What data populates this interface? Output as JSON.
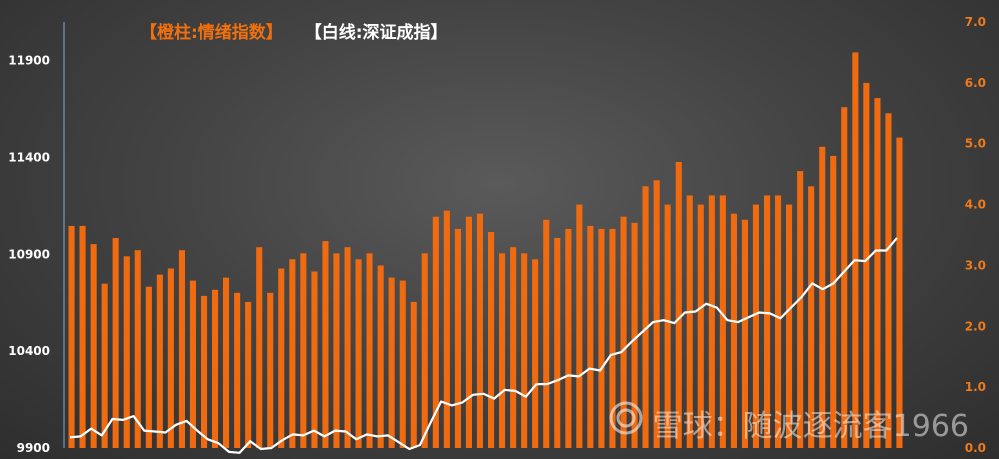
{
  "legend": {
    "orange_label": "【橙柱:情绪指数】",
    "white_label": "【白线:深证成指】"
  },
  "watermark": {
    "text": "雪球：随波逐流客1966",
    "icon": "snowball-logo-icon"
  },
  "colors": {
    "bar": "#f06a10",
    "line": "#ffffff",
    "left_axis_text": "#ffffff",
    "right_axis_text": "#f07a1a"
  },
  "chart_data": {
    "type": "bar",
    "title": "",
    "grid": false,
    "legend_position": "top-left",
    "left_axis": {
      "ticks": [
        "9900",
        "10400",
        "10900",
        "11400",
        "11900"
      ],
      "range": [
        9900,
        12100
      ]
    },
    "right_axis": {
      "ticks": [
        "0.0",
        "1.0",
        "2.0",
        "3.0",
        "4.0",
        "5.0",
        "6.0",
        "7.0"
      ],
      "range": [
        0.0,
        7.0
      ]
    },
    "series": [
      {
        "name": "情绪指数",
        "kind": "bar",
        "axis": "right",
        "values": [
          3.65,
          3.65,
          3.35,
          2.7,
          3.45,
          3.15,
          3.25,
          2.65,
          2.85,
          2.95,
          3.25,
          2.75,
          2.5,
          2.6,
          2.8,
          2.55,
          2.4,
          3.3,
          2.55,
          2.95,
          3.1,
          3.2,
          2.9,
          3.4,
          3.2,
          3.3,
          3.1,
          3.2,
          3.0,
          2.8,
          2.75,
          2.4,
          3.2,
          3.8,
          3.9,
          3.6,
          3.8,
          3.85,
          3.55,
          3.2,
          3.3,
          3.2,
          3.1,
          3.75,
          3.45,
          3.6,
          4.0,
          3.65,
          3.6,
          3.6,
          3.8,
          3.7,
          4.3,
          4.4,
          4.0,
          4.7,
          4.15,
          4.0,
          4.15,
          4.15,
          3.85,
          3.75,
          4.0,
          4.15,
          4.15,
          4.0,
          4.55,
          4.3,
          4.95,
          4.8,
          5.6,
          6.5,
          6.0,
          5.75,
          5.5,
          5.1
        ]
      },
      {
        "name": "深证成指",
        "kind": "line",
        "axis": "left",
        "values": [
          9955,
          9960,
          10000,
          9965,
          10050,
          10045,
          10065,
          9990,
          9985,
          9980,
          10020,
          10040,
          9990,
          9945,
          9925,
          9880,
          9875,
          9935,
          9895,
          9900,
          9940,
          9970,
          9965,
          9990,
          9960,
          9990,
          9985,
          9945,
          9970,
          9960,
          9965,
          9930,
          9895,
          9915,
          10030,
          10140,
          10120,
          10135,
          10175,
          10180,
          10155,
          10200,
          10195,
          10165,
          10230,
          10230,
          10250,
          10275,
          10270,
          10310,
          10300,
          10380,
          10395,
          10450,
          10500,
          10550,
          10560,
          10545,
          10600,
          10605,
          10645,
          10625,
          10560,
          10550,
          10575,
          10600,
          10595,
          10570,
          10625,
          10680,
          10750,
          10720,
          10750,
          10810,
          10870,
          10865,
          10920,
          10920,
          10985
        ]
      }
    ]
  }
}
